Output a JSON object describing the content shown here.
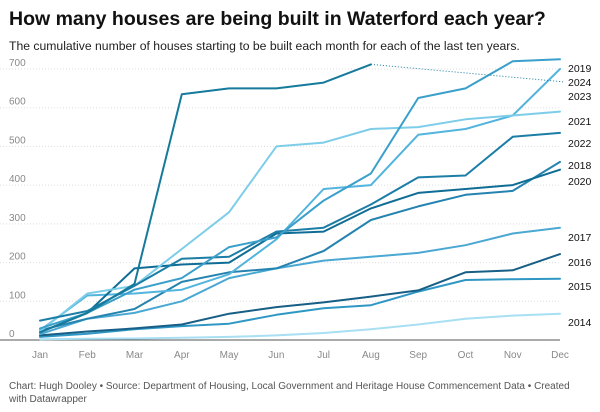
{
  "title": "How many houses are being built in Waterford each year?",
  "subtitle": "The cumulative number of houses starting to be built each month for each of the last ten years.",
  "footer": {
    "chart_by": "Chart: Hugh Dooley",
    "source": "Source: Department of Housing, Local Government and Heritage House Commencement Data",
    "created_with": "Created with Datawrapper"
  },
  "chart_data": {
    "type": "line",
    "title": "How many houses are being built in Waterford each year?",
    "xlabel": "",
    "ylabel": "",
    "x": [
      "Jan",
      "Feb",
      "Mar",
      "Apr",
      "May",
      "Jun",
      "Jul",
      "Aug",
      "Sep",
      "Oct",
      "Nov",
      "Dec"
    ],
    "ylim": [
      0,
      700
    ],
    "yticks": [
      0,
      100,
      200,
      300,
      400,
      500,
      600,
      700
    ],
    "grid": true,
    "series": [
      {
        "name": "2014",
        "color": "#a8dff2",
        "values": [
          2,
          3,
          4,
          6,
          8,
          12,
          18,
          28,
          40,
          55,
          63,
          68
        ]
      },
      {
        "name": "2015",
        "color": "#2f97c4",
        "values": [
          8,
          16,
          28,
          36,
          42,
          65,
          82,
          90,
          125,
          155,
          157,
          158
        ]
      },
      {
        "name": "2016",
        "color": "#175f86",
        "values": [
          12,
          22,
          30,
          40,
          68,
          85,
          97,
          112,
          128,
          175,
          180,
          222
        ]
      },
      {
        "name": "2017",
        "color": "#4aa8d3",
        "values": [
          15,
          55,
          70,
          100,
          160,
          185,
          205,
          215,
          225,
          245,
          275,
          290
        ]
      },
      {
        "name": "2018",
        "color": "#2583b0",
        "values": [
          25,
          55,
          80,
          150,
          175,
          185,
          230,
          310,
          345,
          375,
          385,
          460
        ]
      },
      {
        "name": "2019",
        "color": "#53b4de",
        "values": [
          25,
          115,
          120,
          130,
          170,
          260,
          390,
          400,
          530,
          545,
          580,
          700
        ]
      },
      {
        "name": "2020",
        "color": "#0f6d95",
        "values": [
          20,
          70,
          185,
          195,
          200,
          275,
          280,
          340,
          380,
          390,
          400,
          440
        ]
      },
      {
        "name": "2021",
        "color": "#7dcde9",
        "values": [
          22,
          120,
          140,
          235,
          330,
          500,
          510,
          545,
          550,
          570,
          580,
          590
        ]
      },
      {
        "name": "2022",
        "color": "#1c7ea6",
        "values": [
          50,
          75,
          140,
          210,
          215,
          280,
          290,
          350,
          420,
          425,
          525,
          535
        ]
      },
      {
        "name": "2023",
        "color": "#3a9fcb",
        "values": [
          30,
          70,
          130,
          160,
          240,
          265,
          360,
          430,
          625,
          650,
          720,
          725
        ]
      },
      {
        "name": "2024",
        "color": "#157a9c",
        "values": [
          20,
          70,
          145,
          635,
          650,
          650,
          665,
          712,
          null,
          null,
          null,
          null
        ]
      }
    ],
    "series_labels": [
      "2019",
      "2024",
      "2023",
      "2021",
      "2022",
      "2018",
      "2020",
      "2017",
      "2016",
      "2015",
      "2014"
    ]
  }
}
